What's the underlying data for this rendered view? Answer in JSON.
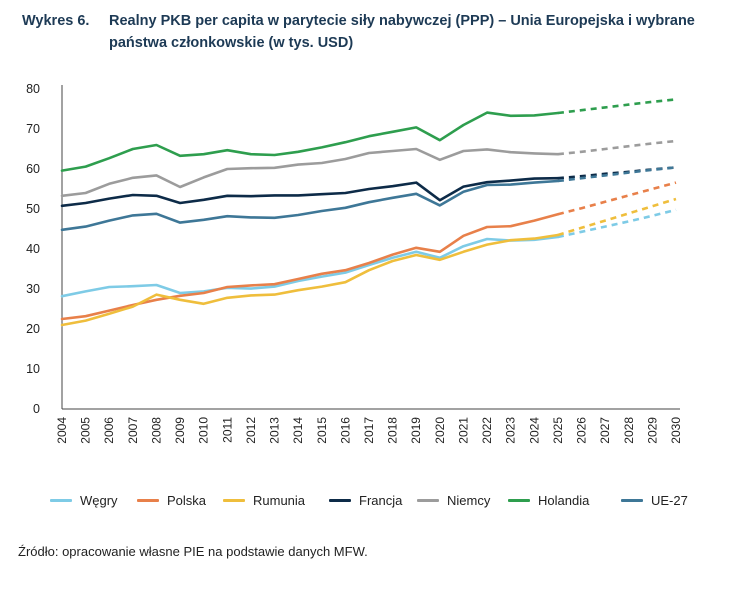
{
  "title": {
    "label": "Wykres 6.",
    "text": "Realny PKB per capita w parytecie siły nabywczej (PPP) – Unia Europejska i wybrane państwa członkowskie (w tys. USD)"
  },
  "source": "Źródło: opracowanie własne PIE na podstawie danych MFW.",
  "chart_data": {
    "type": "line",
    "x": [
      "2004",
      "2005",
      "2006",
      "2007",
      "2008",
      "2009",
      "2010",
      "2011",
      "2012",
      "2013",
      "2014",
      "2015",
      "2016",
      "2017",
      "2018",
      "2019",
      "2020",
      "2021",
      "2022",
      "2023",
      "2024",
      "2025",
      "2026",
      "2027",
      "2028",
      "2029",
      "2030"
    ],
    "ylim": [
      0,
      80
    ],
    "yticks": [
      "0",
      "10",
      "20",
      "30",
      "40",
      "50",
      "60",
      "70",
      "80"
    ],
    "forecast_from": "2025",
    "forecast_style": "dashed",
    "grid": false,
    "legend_position": "bottom",
    "series": [
      {
        "name": "Węgry",
        "color": "#7ecbe6",
        "values": [
          28.2,
          29.4,
          30.5,
          30.7,
          31.0,
          29.0,
          29.4,
          30.3,
          30.1,
          30.6,
          32.0,
          33.1,
          34.1,
          36.0,
          37.8,
          39.3,
          37.8,
          40.7,
          42.5,
          42.1,
          42.3,
          43.0,
          44.3,
          45.6,
          46.9,
          48.3,
          49.8
        ]
      },
      {
        "name": "Polska",
        "color": "#e8804a",
        "values": [
          22.5,
          23.2,
          24.6,
          26.0,
          27.3,
          28.3,
          29.0,
          30.5,
          30.9,
          31.2,
          32.5,
          33.8,
          34.7,
          36.5,
          38.6,
          40.3,
          39.3,
          43.3,
          45.5,
          45.7,
          47.1,
          48.7,
          50.2,
          51.8,
          53.4,
          55.0,
          56.6
        ]
      },
      {
        "name": "Rumunia",
        "color": "#efbe3c",
        "values": [
          21.0,
          22.1,
          23.8,
          25.6,
          28.6,
          27.3,
          26.3,
          27.8,
          28.4,
          28.6,
          29.7,
          30.6,
          31.7,
          34.7,
          37.0,
          38.5,
          37.3,
          39.3,
          41.1,
          42.2,
          42.6,
          43.5,
          45.3,
          47.1,
          48.9,
          50.7,
          52.5
        ]
      },
      {
        "name": "Francja",
        "color": "#0d2b48",
        "values": [
          50.8,
          51.5,
          52.6,
          53.5,
          53.3,
          51.5,
          52.3,
          53.3,
          53.2,
          53.4,
          53.4,
          53.7,
          54.0,
          55.0,
          55.7,
          56.6,
          52.2,
          55.6,
          56.7,
          57.1,
          57.6,
          57.7,
          58.2,
          58.8,
          59.3,
          59.9,
          60.4
        ]
      },
      {
        "name": "Niemcy",
        "color": "#9c9c9c",
        "values": [
          53.3,
          54.0,
          56.3,
          57.8,
          58.4,
          55.5,
          57.9,
          60.0,
          60.2,
          60.3,
          61.1,
          61.5,
          62.5,
          64.0,
          64.5,
          65.0,
          62.3,
          64.5,
          64.9,
          64.2,
          63.9,
          63.7,
          64.3,
          65.0,
          65.7,
          66.4,
          67.0
        ]
      },
      {
        "name": "Holandia",
        "color": "#2e9e4e",
        "values": [
          59.6,
          60.6,
          62.7,
          65.0,
          66.0,
          63.3,
          63.7,
          64.7,
          63.7,
          63.5,
          64.3,
          65.4,
          66.7,
          68.2,
          69.3,
          70.4,
          67.2,
          71.0,
          74.1,
          73.3,
          73.4,
          74.0,
          74.7,
          75.4,
          76.1,
          76.8,
          77.4
        ]
      },
      {
        "name": "UE-27",
        "color": "#3e7797",
        "values": [
          44.8,
          45.6,
          47.1,
          48.4,
          48.8,
          46.6,
          47.3,
          48.2,
          47.9,
          47.8,
          48.5,
          49.5,
          50.3,
          51.7,
          52.8,
          53.8,
          50.9,
          54.3,
          56.0,
          56.1,
          56.6,
          57.0,
          57.7,
          58.4,
          59.1,
          59.8,
          60.4
        ]
      }
    ]
  }
}
